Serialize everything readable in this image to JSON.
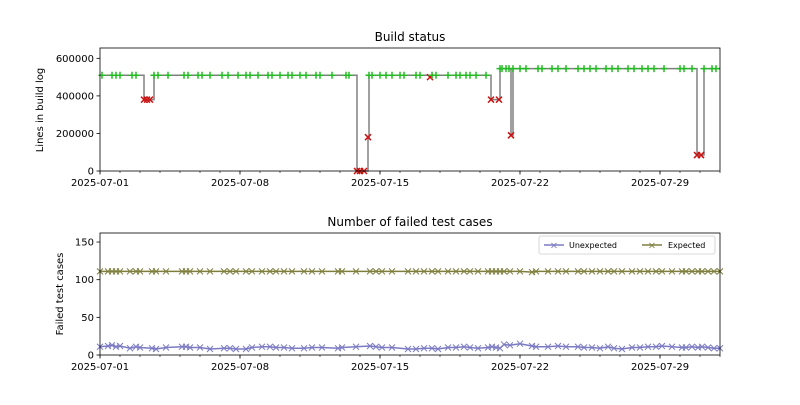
{
  "chart_data": [
    {
      "type": "line",
      "title": "Build status",
      "xlabel": "",
      "ylabel": "Lines in build log",
      "x_origin": "2025-07-01",
      "x_unit": "days since 2025-07-01",
      "xlim": [
        0,
        31
      ],
      "ylim": [
        0,
        655000
      ],
      "xticks": [
        "2025-07-01",
        "2025-07-08",
        "2025-07-15",
        "2025-07-22",
        "2025-07-29"
      ],
      "xtick_days": [
        0,
        7,
        14,
        21,
        28
      ],
      "yticks": [
        "0",
        "200000",
        "400000",
        "600000"
      ],
      "ytick_values": [
        0,
        200000,
        400000,
        600000
      ],
      "colors": {
        "line": "#808080",
        "ok": "#22bb22",
        "fail": "#cc1111"
      },
      "runs": [
        [
          0.1,
          510000,
          "ok"
        ],
        [
          0.6,
          510000,
          "ok"
        ],
        [
          0.8,
          510000,
          "ok"
        ],
        [
          1.0,
          510000,
          "ok"
        ],
        [
          1.6,
          510000,
          "ok"
        ],
        [
          1.8,
          510000,
          "ok"
        ],
        [
          2.2,
          380000,
          "fail"
        ],
        [
          2.35,
          380000,
          "fail"
        ],
        [
          2.5,
          380000,
          "fail"
        ],
        [
          2.7,
          510000,
          "ok"
        ],
        [
          2.9,
          510000,
          "ok"
        ],
        [
          3.4,
          510000,
          "ok"
        ],
        [
          4.2,
          510000,
          "ok"
        ],
        [
          4.4,
          510000,
          "ok"
        ],
        [
          4.9,
          510000,
          "ok"
        ],
        [
          5.1,
          510000,
          "ok"
        ],
        [
          5.5,
          510000,
          "ok"
        ],
        [
          6.1,
          510000,
          "ok"
        ],
        [
          6.4,
          510000,
          "ok"
        ],
        [
          6.9,
          510000,
          "ok"
        ],
        [
          7.3,
          510000,
          "ok"
        ],
        [
          7.5,
          510000,
          "ok"
        ],
        [
          7.9,
          510000,
          "ok"
        ],
        [
          8.4,
          510000,
          "ok"
        ],
        [
          8.6,
          510000,
          "ok"
        ],
        [
          9.0,
          510000,
          "ok"
        ],
        [
          9.4,
          510000,
          "ok"
        ],
        [
          9.6,
          510000,
          "ok"
        ],
        [
          10.0,
          510000,
          "ok"
        ],
        [
          10.3,
          510000,
          "ok"
        ],
        [
          10.8,
          510000,
          "ok"
        ],
        [
          11.0,
          510000,
          "ok"
        ],
        [
          11.6,
          510000,
          "ok"
        ],
        [
          12.3,
          510000,
          "ok"
        ],
        [
          12.45,
          510000,
          "ok"
        ],
        [
          12.85,
          0,
          "fail"
        ],
        [
          13.0,
          0,
          "fail"
        ],
        [
          13.2,
          0,
          "fail"
        ],
        [
          13.4,
          180000,
          "fail"
        ],
        [
          13.45,
          510000,
          "ok"
        ],
        [
          13.6,
          510000,
          "ok"
        ],
        [
          14.0,
          510000,
          "ok"
        ],
        [
          14.3,
          510000,
          "ok"
        ],
        [
          14.6,
          510000,
          "ok"
        ],
        [
          15.0,
          510000,
          "ok"
        ],
        [
          15.2,
          510000,
          "ok"
        ],
        [
          15.8,
          510000,
          "ok"
        ],
        [
          16.0,
          510000,
          "ok"
        ],
        [
          16.5,
          500000,
          "fail"
        ],
        [
          16.6,
          510000,
          "ok"
        ],
        [
          16.8,
          510000,
          "ok"
        ],
        [
          17.4,
          510000,
          "ok"
        ],
        [
          17.8,
          510000,
          "ok"
        ],
        [
          18.0,
          510000,
          "ok"
        ],
        [
          18.3,
          510000,
          "ok"
        ],
        [
          18.5,
          510000,
          "ok"
        ],
        [
          18.8,
          510000,
          "ok"
        ],
        [
          19.3,
          510000,
          "ok"
        ],
        [
          19.55,
          380000,
          "fail"
        ],
        [
          19.95,
          380000,
          "fail"
        ],
        [
          20.0,
          545000,
          "ok"
        ],
        [
          20.1,
          545000,
          "ok"
        ],
        [
          20.3,
          545000,
          "ok"
        ],
        [
          20.45,
          545000,
          "ok"
        ],
        [
          20.55,
          190000,
          "fail"
        ],
        [
          20.65,
          545000,
          "ok"
        ],
        [
          21.0,
          545000,
          "ok"
        ],
        [
          21.3,
          545000,
          "ok"
        ],
        [
          21.9,
          545000,
          "ok"
        ],
        [
          22.1,
          545000,
          "ok"
        ],
        [
          22.6,
          545000,
          "ok"
        ],
        [
          22.9,
          545000,
          "ok"
        ],
        [
          23.3,
          545000,
          "ok"
        ],
        [
          23.9,
          545000,
          "ok"
        ],
        [
          24.2,
          545000,
          "ok"
        ],
        [
          24.5,
          545000,
          "ok"
        ],
        [
          24.8,
          545000,
          "ok"
        ],
        [
          25.3,
          545000,
          "ok"
        ],
        [
          25.6,
          545000,
          "ok"
        ],
        [
          25.9,
          545000,
          "ok"
        ],
        [
          26.4,
          545000,
          "ok"
        ],
        [
          26.7,
          545000,
          "ok"
        ],
        [
          27.1,
          545000,
          "ok"
        ],
        [
          27.4,
          545000,
          "ok"
        ],
        [
          27.7,
          545000,
          "ok"
        ],
        [
          28.2,
          545000,
          "ok"
        ],
        [
          29.0,
          545000,
          "ok"
        ],
        [
          29.2,
          545000,
          "ok"
        ],
        [
          29.6,
          545000,
          "ok"
        ],
        [
          29.85,
          85000,
          "fail"
        ],
        [
          30.05,
          85000,
          "fail"
        ],
        [
          30.2,
          545000,
          "ok"
        ],
        [
          30.6,
          545000,
          "ok"
        ],
        [
          30.8,
          545000,
          "ok"
        ]
      ]
    },
    {
      "type": "line",
      "title": "Number of failed test cases",
      "xlabel": "",
      "ylabel": "Failed test cases",
      "x_origin": "2025-07-01",
      "x_unit": "days since 2025-07-01",
      "xlim": [
        0,
        31
      ],
      "ylim": [
        0,
        162
      ],
      "xticks": [
        "2025-07-01",
        "2025-07-08",
        "2025-07-15",
        "2025-07-22",
        "2025-07-29"
      ],
      "xtick_days": [
        0,
        7,
        14,
        21,
        28
      ],
      "yticks": [
        "0",
        "50",
        "100",
        "150"
      ],
      "ytick_values": [
        0,
        50,
        100,
        150
      ],
      "legend_position": "top-right",
      "x": [
        0,
        0.4,
        0.6,
        0.8,
        1.0,
        1.5,
        1.8,
        2.0,
        2.6,
        2.8,
        3.3,
        4.1,
        4.3,
        4.5,
        5.0,
        5.5,
        6.2,
        6.5,
        6.8,
        7.3,
        7.6,
        8.1,
        8.5,
        8.8,
        9.2,
        9.6,
        10.2,
        10.6,
        11.1,
        11.9,
        12.1,
        12.8,
        13.5,
        13.8,
        14.1,
        14.6,
        15.4,
        15.8,
        16.2,
        16.6,
        16.9,
        17.4,
        17.8,
        18.2,
        18.5,
        18.9,
        19.4,
        19.6,
        19.8,
        20.0,
        20.2,
        20.5,
        21.0,
        21.6,
        21.8,
        22.4,
        22.9,
        23.3,
        23.9,
        24.2,
        24.6,
        25.0,
        25.4,
        25.7,
        26.1,
        26.6,
        27.0,
        27.4,
        27.8,
        28.1,
        28.6,
        29.1,
        29.3,
        29.6,
        29.9,
        30.1,
        30.4,
        30.7,
        31.0
      ],
      "series": [
        {
          "name": "Unexpected",
          "color": "#7b7bc4",
          "values": [
            11,
            12,
            13,
            11,
            12,
            9,
            11,
            10,
            9,
            8,
            10,
            11,
            11,
            10,
            10,
            8,
            9,
            9,
            8,
            8,
            10,
            11,
            11,
            10,
            10,
            9,
            9,
            10,
            10,
            9,
            10,
            11,
            12,
            11,
            10,
            10,
            8,
            8,
            9,
            9,
            8,
            10,
            10,
            11,
            10,
            9,
            10,
            11,
            10,
            9,
            14,
            13,
            15,
            12,
            11,
            11,
            12,
            11,
            11,
            10,
            10,
            9,
            11,
            9,
            8,
            10,
            10,
            11,
            11,
            12,
            11,
            10,
            10,
            11,
            10,
            11,
            10,
            9,
            9
          ]
        },
        {
          "name": "Expected",
          "color": "#7f7f3f",
          "values": [
            111,
            111,
            111,
            111,
            111,
            111,
            111,
            111,
            111,
            111,
            111,
            111,
            111,
            111,
            111,
            111,
            111,
            111,
            111,
            111,
            111,
            111,
            111,
            111,
            111,
            111,
            111,
            111,
            111,
            111,
            111,
            111,
            111,
            111,
            111,
            111,
            111,
            111,
            111,
            111,
            111,
            111,
            111,
            111,
            111,
            111,
            111,
            111,
            111,
            111,
            111,
            111,
            111,
            110,
            111,
            111,
            111,
            111,
            111,
            111,
            111,
            111,
            111,
            111,
            111,
            111,
            111,
            111,
            111,
            111,
            111,
            111,
            111,
            111,
            111,
            111,
            111,
            111,
            111
          ]
        }
      ]
    }
  ]
}
